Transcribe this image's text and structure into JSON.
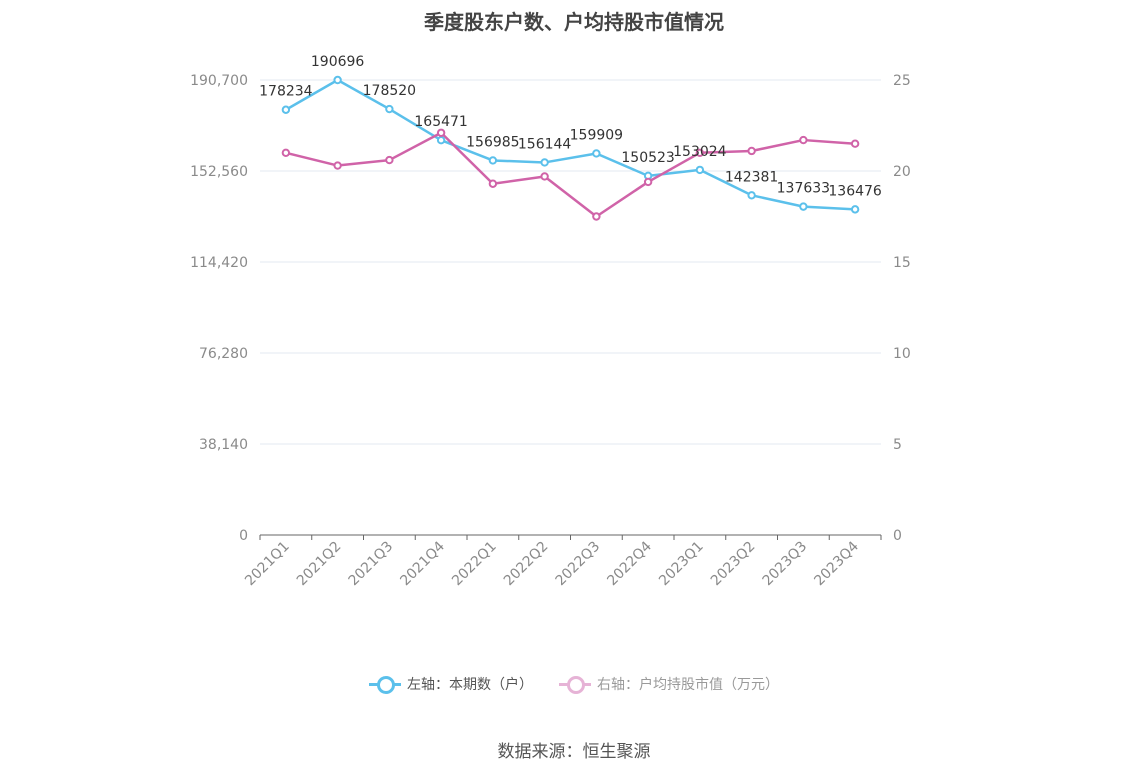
{
  "chart_data": {
    "type": "line",
    "title": "季度股东户数、户均持股市值情况",
    "categories": [
      "2021Q1",
      "2021Q2",
      "2021Q3",
      "2021Q4",
      "2022Q1",
      "2022Q2",
      "2022Q3",
      "2022Q4",
      "2023Q1",
      "2023Q2",
      "2023Q3",
      "2023Q4"
    ],
    "left_axis": {
      "ylim": [
        0,
        190700
      ],
      "ticks": [
        "0",
        "38,140",
        "76,280",
        "114,420",
        "152,560",
        "190,700"
      ]
    },
    "right_axis": {
      "ylim": [
        0,
        25
      ],
      "ticks": [
        "0",
        "5",
        "10",
        "15",
        "20",
        "25"
      ]
    },
    "series": [
      {
        "name": "左轴：本期数（户）",
        "axis": "left",
        "color": "#5bc0eb",
        "values": [
          178234,
          190696,
          178520,
          165471,
          156985,
          156144,
          159909,
          150523,
          153024,
          142381,
          137633,
          136476
        ],
        "labels": [
          "178234",
          "190696",
          "178520",
          "165471",
          "156985",
          "156144",
          "159909",
          "150523",
          "153024",
          "142381",
          "137633",
          "136476"
        ]
      },
      {
        "name": "右轴：户均持股市值（万元）",
        "axis": "right",
        "color": "#d063a8",
        "values": [
          21.0,
          20.3,
          20.6,
          22.1,
          19.3,
          19.7,
          17.5,
          19.4,
          21.0,
          21.1,
          21.7,
          21.5
        ]
      }
    ],
    "grid": true,
    "legend_position": "bottom"
  },
  "source": "数据来源：恒生聚源"
}
